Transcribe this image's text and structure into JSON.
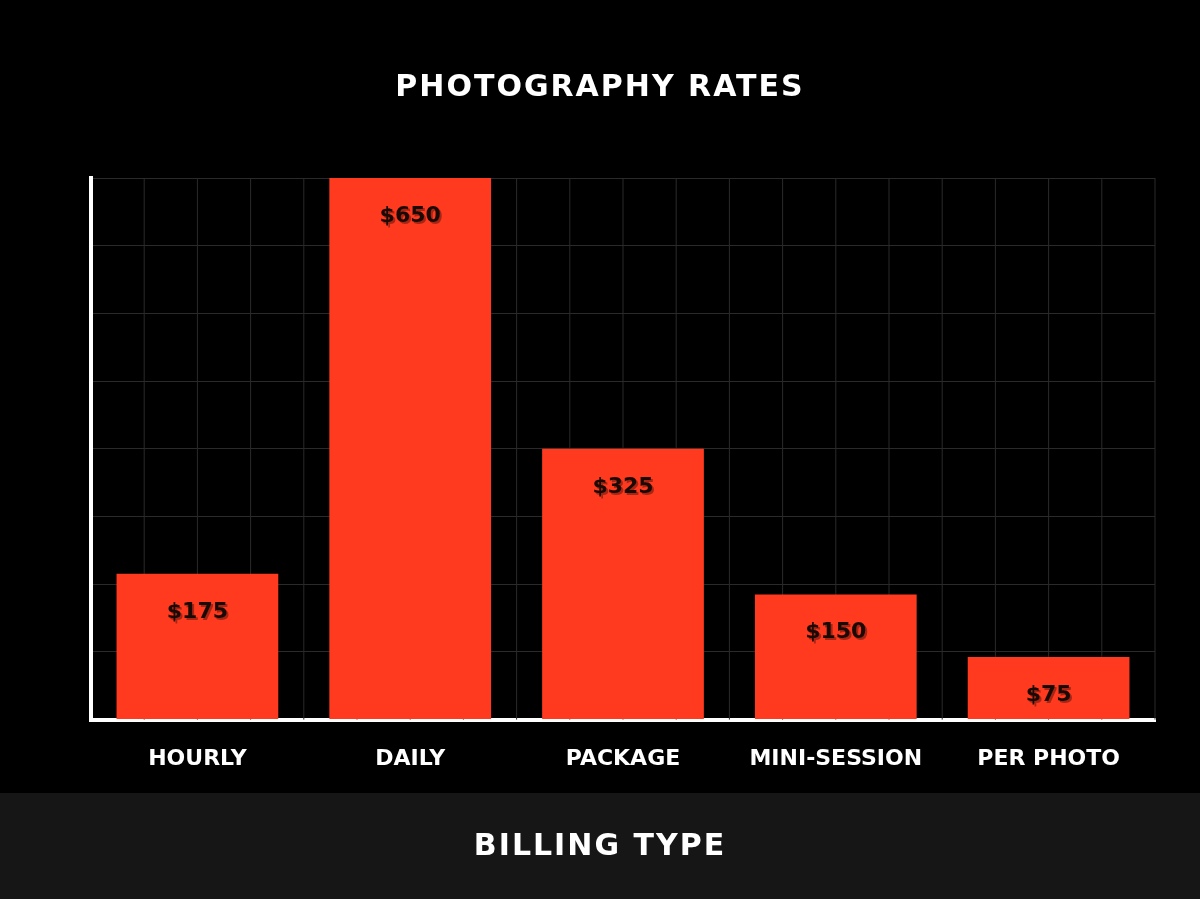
{
  "chart_data": {
    "type": "bar",
    "title": "PHOTOGRAPHY RATES",
    "xlabel": "BILLING TYPE",
    "categories": [
      "HOURLY",
      "DAILY",
      "PACKAGE",
      "MINI-SESSION",
      "PER PHOTO"
    ],
    "values": [
      175,
      650,
      325,
      150,
      75
    ],
    "color": "#ff3a1f",
    "value_labels": [
      "$175",
      "$650",
      "$325",
      "$150",
      "$75"
    ],
    "ylim": [
      0,
      650
    ],
    "yticks": [
      {
        "value": 0,
        "label": null
      },
      {
        "value": 81.25,
        "label": null
      },
      {
        "value": 162.5,
        "label": null
      },
      {
        "value": 243.75,
        "label": null
      },
      {
        "value": 325,
        "label": null
      },
      {
        "value": 406.25,
        "label": null
      },
      {
        "value": 487.5,
        "label": null
      },
      {
        "value": 568.75,
        "label": null
      },
      {
        "value": 650,
        "label": null
      }
    ],
    "tick_labels": "x",
    "grid": true,
    "legend": false
  }
}
